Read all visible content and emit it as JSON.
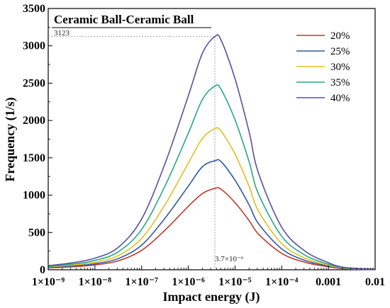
{
  "chart_data": {
    "type": "line",
    "title": "Ceramic Ball-Ceramic Ball",
    "xlabel": "Impact energy (J)",
    "ylabel": "Frequency (1/s)",
    "x_scale": "log",
    "xlim": [
      1e-09,
      0.01
    ],
    "ylim": [
      0,
      3500
    ],
    "x_ticks": [
      1e-09,
      1e-08,
      1e-07,
      1e-06,
      1e-05,
      0.0001,
      0.001,
      0.01
    ],
    "x_tick_labels": [
      "1×10⁻⁹",
      "1×10⁻⁸",
      "1×10⁻⁷",
      "1×10⁻⁶",
      "1×10⁻⁵",
      "1×10⁻⁴",
      "0.001",
      "0.01"
    ],
    "y_ticks": [
      0,
      500,
      1000,
      1500,
      2000,
      2500,
      3000,
      3500
    ],
    "y_tick_labels": [
      "0",
      "500",
      "1000",
      "1500",
      "2000",
      "2500",
      "3000",
      "3500"
    ],
    "grid": false,
    "legend_position": "top-right",
    "x": [
      1e-09,
      3.16e-09,
      1e-08,
      3.16e-08,
      1e-07,
      3.16e-07,
      1e-06,
      2e-06,
      3.7e-06,
      5e-06,
      1e-05,
      2e-05,
      3.16e-05,
      0.0001,
      0.000316,
      0.001,
      0.002,
      0.005,
      0.01
    ],
    "series": [
      {
        "name": "20%",
        "color": "#c0392b",
        "values": [
          25,
          40,
          65,
          120,
          260,
          530,
          850,
          1020,
          1090,
          1080,
          900,
          660,
          480,
          220,
          100,
          40,
          15,
          6,
          3
        ]
      },
      {
        "name": "25%",
        "color": "#2e58a6",
        "values": [
          30,
          50,
          80,
          150,
          330,
          690,
          1120,
          1380,
          1460,
          1450,
          1200,
          870,
          620,
          280,
          125,
          50,
          18,
          8,
          4
        ]
      },
      {
        "name": "30%",
        "color": "#e0c020",
        "values": [
          38,
          62,
          100,
          190,
          420,
          870,
          1430,
          1760,
          1890,
          1860,
          1550,
          1120,
          790,
          350,
          155,
          60,
          22,
          10,
          5
        ]
      },
      {
        "name": "35%",
        "color": "#26a882",
        "values": [
          45,
          75,
          125,
          240,
          540,
          1120,
          1830,
          2280,
          2460,
          2420,
          2010,
          1450,
          1020,
          450,
          195,
          75,
          28,
          12,
          6
        ]
      },
      {
        "name": "40%",
        "color": "#5a4fa0",
        "values": [
          55,
          92,
          155,
          300,
          680,
          1420,
          2330,
          2900,
          3123,
          3080,
          2560,
          1850,
          1300,
          570,
          250,
          95,
          35,
          15,
          8
        ]
      }
    ],
    "annotations": [
      {
        "text": "3123",
        "x": 3.7e-06,
        "y": 3123
      },
      {
        "text": "3.7×10⁻⁶",
        "x": 3.7e-06,
        "y": 0
      }
    ]
  }
}
